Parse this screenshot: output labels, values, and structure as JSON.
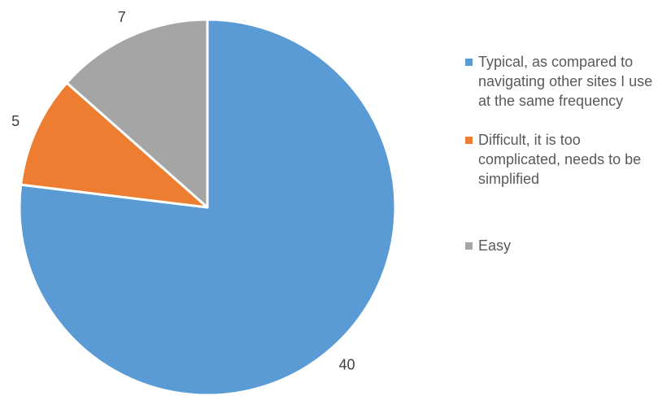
{
  "chart_data": {
    "type": "pie",
    "title": "",
    "categories": [
      "Typical, as compared to navigating other sites I use at the same frequency",
      "Difficult, it is too complicated, needs to be simplified",
      "Easy"
    ],
    "values": [
      40,
      5,
      7
    ],
    "colors": [
      "#5b9bd5",
      "#ed7d31",
      "#a5a5a5"
    ],
    "start_angle_deg": 0,
    "direction": "clockwise",
    "data_labels": [
      "40",
      "5",
      "7"
    ],
    "legend_position": "right"
  }
}
